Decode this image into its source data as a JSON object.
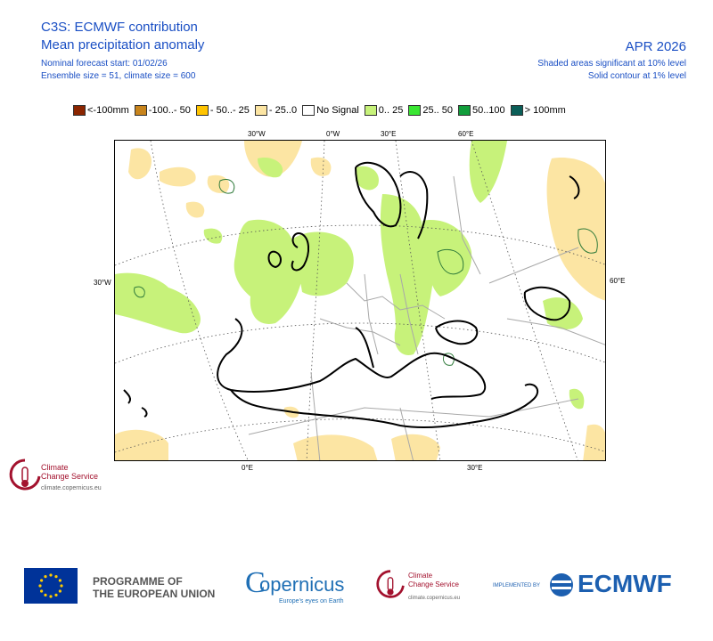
{
  "header": {
    "title_line1": "C3S: ECMWF contribution",
    "title_line2": "Mean precipitation anomaly",
    "start_line": "Nominal forecast start: 01/02/26",
    "ensemble_line": "Ensemble size = 51, climate size = 600",
    "month": "APR 2026",
    "sig_line1": "Shaded areas significant at 10% level",
    "sig_line2": "Solid contour at 1% level"
  },
  "legend": [
    {
      "label": "<-100mm",
      "color": "#8b2500"
    },
    {
      "label": "-100..- 50",
      "color": "#c8841c"
    },
    {
      "label": "- 50..- 25",
      "color": "#ffc400"
    },
    {
      "label": "- 25..0",
      "color": "#fce5a3"
    },
    {
      "label": "No Signal",
      "color": "#ffffff"
    },
    {
      "label": "0.. 25",
      "color": "#c7f27a"
    },
    {
      "label": "25.. 50",
      "color": "#39e632"
    },
    {
      "label": "50..100",
      "color": "#119d3b"
    },
    {
      "label": "> 100mm",
      "color": "#0b5e58"
    }
  ],
  "axis_labels": {
    "top": [
      "30°W",
      "0°W",
      "30°E",
      "60°E"
    ],
    "bottom": [
      "0°E",
      "30°E"
    ],
    "left": "30°W",
    "right": "60°E"
  },
  "footer": {
    "programme_line1": "PROGRAMME OF",
    "programme_line2": "THE EUROPEAN UNION",
    "copernicus": "opernicus",
    "copernicus_c": "C",
    "copernicus_tagline": "Europe's eyes on Earth",
    "c3s_line1": "Climate",
    "c3s_line2": "Change Service",
    "c3s_url": "climate.copernicus.eu",
    "implemented_by": "IMPLEMENTED BY",
    "ecmwf": "ECMWF"
  },
  "colors": {
    "text_blue": "#1a4fc4",
    "land_outline": "#000000",
    "border_gray": "#a8a8a8",
    "positive_shade": "#c7f27a",
    "negative_shade": "#fce5a3",
    "contour": "#2f7a3a",
    "c3s_red": "#a3122e",
    "eu_blue": "#003399",
    "ecmwf_blue": "#1c5fb0"
  }
}
